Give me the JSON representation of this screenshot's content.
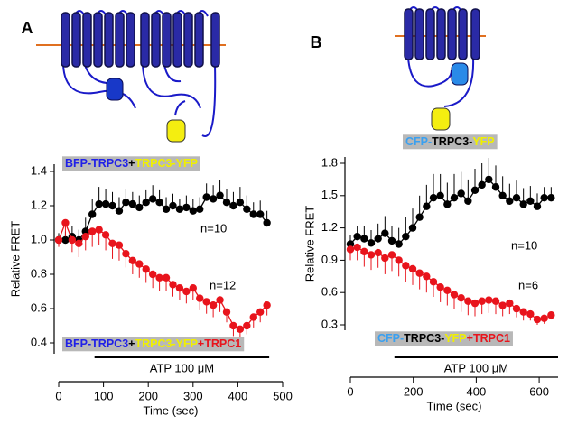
{
  "chart_data": [
    {
      "type": "line",
      "panel": "A",
      "xlabel": "Time (sec)",
      "ylabel": "Relative FRET",
      "xlim": [
        0,
        500
      ],
      "ylim": [
        0.4,
        1.4
      ],
      "xticks": [
        0,
        100,
        200,
        300,
        400,
        500
      ],
      "yticks": [
        0.4,
        0.6,
        0.8,
        {
          "value": 1,
          "label": "1.0"
        },
        1.2,
        1.4
      ],
      "x": [
        0,
        15,
        30,
        45,
        60,
        75,
        90,
        105,
        120,
        135,
        150,
        165,
        180,
        195,
        210,
        225,
        240,
        255,
        270,
        285,
        300,
        315,
        330,
        345,
        360,
        375,
        390,
        405,
        420,
        435,
        450,
        465
      ],
      "series": [
        {
          "color": "#000000",
          "error_side": "up",
          "values": [
            1.0,
            1.0,
            1.02,
            1.0,
            1.05,
            1.15,
            1.21,
            1.21,
            1.2,
            1.17,
            1.22,
            1.21,
            1.19,
            1.22,
            1.24,
            1.22,
            1.18,
            1.2,
            1.18,
            1.19,
            1.17,
            1.18,
            1.25,
            1.24,
            1.26,
            1.22,
            1.2,
            1.22,
            1.18,
            1.15,
            1.15,
            1.1
          ],
          "errors": [
            0.04,
            0.05,
            0.06,
            0.06,
            0.08,
            0.09,
            0.1,
            0.09,
            0.08,
            0.08,
            0.08,
            0.07,
            0.07,
            0.07,
            0.08,
            0.07,
            0.07,
            0.07,
            0.06,
            0.07,
            0.07,
            0.07,
            0.08,
            0.08,
            0.09,
            0.08,
            0.08,
            0.09,
            0.08,
            0.07,
            0.08,
            0.07
          ]
        },
        {
          "color": "#e8141c",
          "error_side": "down",
          "values": [
            1.0,
            1.1,
            1.0,
            0.98,
            1.02,
            1.05,
            1.06,
            1.03,
            0.98,
            0.97,
            0.92,
            0.88,
            0.86,
            0.83,
            0.8,
            0.78,
            0.78,
            0.74,
            0.72,
            0.7,
            0.72,
            0.66,
            0.64,
            0.62,
            0.65,
            0.58,
            0.5,
            0.48,
            0.5,
            0.55,
            0.58,
            0.62
          ],
          "errors": [
            0.04,
            0.08,
            0.07,
            0.08,
            0.08,
            0.09,
            0.09,
            0.09,
            0.09,
            0.09,
            0.08,
            0.08,
            0.08,
            0.08,
            0.08,
            0.08,
            0.08,
            0.07,
            0.07,
            0.07,
            0.07,
            0.07,
            0.07,
            0.07,
            0.07,
            0.06,
            0.06,
            0.05,
            0.05,
            0.06,
            0.06,
            0.06
          ]
        }
      ],
      "annotations": [
        "n=10",
        "n=12"
      ],
      "stimulus": {
        "label": "ATP 100 μM",
        "start": 80,
        "end": 470
      },
      "labels": [
        {
          "parts": [
            {
              "text": "BFP-TRPC3",
              "color": "#2020e8"
            },
            {
              "text": "+",
              "color": "#000000"
            },
            {
              "text": "TRPC3-YFP",
              "color": "#f0f000"
            }
          ]
        },
        {
          "parts": [
            {
              "text": "BFP-TRPC3",
              "color": "#2020e8"
            },
            {
              "text": "+",
              "color": "#000000"
            },
            {
              "text": "TRPC3-YFP",
              "color": "#f0f000"
            },
            {
              "text": "+TRPC1",
              "color": "#e8141c"
            }
          ]
        }
      ]
    },
    {
      "type": "line",
      "panel": "B",
      "xlabel": "Time (sec)",
      "ylabel": "Relative FRET",
      "xlim": [
        0,
        660
      ],
      "ylim": [
        0.3,
        1.8
      ],
      "xticks": [
        0,
        200,
        400,
        600
      ],
      "yticks": [
        0.3,
        0.6,
        0.9,
        1.2,
        1.5,
        1.8
      ],
      "x": [
        0,
        22,
        44,
        66,
        88,
        110,
        132,
        154,
        176,
        198,
        220,
        242,
        264,
        286,
        308,
        330,
        352,
        374,
        396,
        418,
        440,
        462,
        484,
        506,
        528,
        550,
        572,
        594,
        616,
        638
      ],
      "series": [
        {
          "color": "#000000",
          "error_side": "up",
          "values": [
            1.05,
            1.12,
            1.1,
            1.06,
            1.1,
            1.15,
            1.08,
            1.05,
            1.12,
            1.2,
            1.3,
            1.4,
            1.48,
            1.5,
            1.42,
            1.48,
            1.52,
            1.45,
            1.55,
            1.6,
            1.65,
            1.58,
            1.5,
            1.45,
            1.48,
            1.42,
            1.45,
            1.4,
            1.48,
            1.48
          ],
          "errors": [
            0.08,
            0.1,
            0.12,
            0.12,
            0.14,
            0.16,
            0.14,
            0.15,
            0.18,
            0.18,
            0.2,
            0.2,
            0.22,
            0.2,
            0.2,
            0.22,
            0.2,
            0.2,
            0.2,
            0.2,
            0.2,
            0.2,
            0.18,
            0.16,
            0.16,
            0.15,
            0.14,
            0.12,
            0.1,
            0.1
          ]
        },
        {
          "color": "#e8141c",
          "error_side": "down",
          "values": [
            1.0,
            1.02,
            0.98,
            0.95,
            0.97,
            0.92,
            0.95,
            0.9,
            0.85,
            0.82,
            0.78,
            0.75,
            0.7,
            0.65,
            0.62,
            0.58,
            0.55,
            0.52,
            0.5,
            0.52,
            0.53,
            0.52,
            0.48,
            0.5,
            0.45,
            0.42,
            0.4,
            0.35,
            0.36,
            0.39
          ],
          "errors": [
            0.1,
            0.12,
            0.14,
            0.14,
            0.14,
            0.15,
            0.15,
            0.15,
            0.15,
            0.15,
            0.15,
            0.15,
            0.14,
            0.14,
            0.14,
            0.13,
            0.13,
            0.13,
            0.12,
            0.12,
            0.12,
            0.12,
            0.1,
            0.1,
            0.08,
            0.08,
            0.06,
            0.05,
            0.05,
            0.04
          ]
        }
      ],
      "annotations": [
        "n=10",
        "n=6"
      ],
      "stimulus": {
        "label": "ATP 100 μM",
        "start": 140,
        "end": 660
      },
      "labels": [
        {
          "parts": [
            {
              "text": "CFP-",
              "color": "#3aa0f0"
            },
            {
              "text": "TRPC3-",
              "color": "#000000"
            },
            {
              "text": "YFP",
              "color": "#f0f000"
            }
          ]
        },
        {
          "parts": [
            {
              "text": "CFP-",
              "color": "#3aa0f0"
            },
            {
              "text": "TRPC3-",
              "color": "#000000"
            },
            {
              "text": "YFP",
              "color": "#f0f000"
            },
            {
              "text": "+TRPC1",
              "color": "#e8141c"
            }
          ]
        }
      ]
    }
  ]
}
